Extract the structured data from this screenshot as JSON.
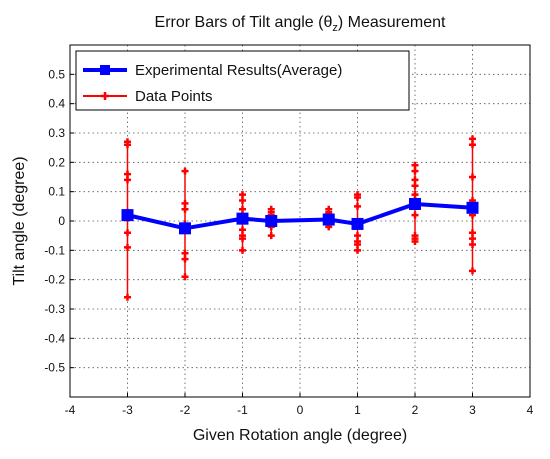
{
  "chart_data": {
    "type": "line",
    "title": "Error Bars of Tilt angle (θz) Measurement",
    "title_parts": {
      "before": "Error Bars of Tilt angle (",
      "theta": "θ",
      "sub": "z",
      "after": ") Measurement"
    },
    "xlabel": "Given Rotation angle (degree)",
    "ylabel": "Tilt angle (degree)",
    "xlim": [
      -4,
      4
    ],
    "ylim": [
      -0.6,
      0.6
    ],
    "xticks": [
      -4,
      -3,
      -2,
      -1,
      0,
      1,
      2,
      3,
      4
    ],
    "xtick_labels": [
      "-4",
      "-3",
      "-2",
      "-1",
      "0",
      "1",
      "2",
      "3",
      "4"
    ],
    "yticks": [
      -0.5,
      -0.4,
      -0.3,
      -0.2,
      -0.1,
      0,
      0.1,
      0.2,
      0.3,
      0.4,
      0.5
    ],
    "ytick_labels": [
      "-0.5",
      "-0.4",
      "-0.3",
      "-0.2",
      "-0.1",
      "0",
      "0.1",
      "0.2",
      "0.3",
      "0.4",
      "0.5"
    ],
    "grid": true,
    "legend_position": "top-left",
    "series": [
      {
        "name": "Experimental Results(Average)",
        "color": "#0000ff",
        "marker": "square",
        "x": [
          -3,
          -2,
          -1,
          -0.5,
          0.5,
          1,
          2,
          3
        ],
        "y": [
          0.02,
          -0.025,
          0.008,
          0.0,
          0.005,
          -0.01,
          0.058,
          0.045
        ]
      },
      {
        "name": "Data Points",
        "color": "#ff0000",
        "marker": "plus",
        "points": [
          [
            -3,
            0.27
          ],
          [
            -3,
            0.26
          ],
          [
            -3,
            0.16
          ],
          [
            -3,
            0.14
          ],
          [
            -3,
            0.03
          ],
          [
            -3,
            0.01
          ],
          [
            -3,
            -0.04
          ],
          [
            -3,
            -0.09
          ],
          [
            -3,
            -0.26
          ],
          [
            -2,
            0.17
          ],
          [
            -2,
            0.06
          ],
          [
            -2,
            0.04
          ],
          [
            -2,
            -0.01
          ],
          [
            -2,
            -0.02
          ],
          [
            -2,
            -0.03
          ],
          [
            -2,
            -0.11
          ],
          [
            -2,
            -0.13
          ],
          [
            -2,
            -0.19
          ],
          [
            -1,
            0.09
          ],
          [
            -1,
            0.07
          ],
          [
            -1,
            0.04
          ],
          [
            -1,
            0.02
          ],
          [
            -1,
            0.01
          ],
          [
            -1,
            -0.03
          ],
          [
            -1,
            -0.05
          ],
          [
            -1,
            -0.06
          ],
          [
            -1,
            -0.1
          ],
          [
            -0.5,
            0.04
          ],
          [
            -0.5,
            0.03
          ],
          [
            -0.5,
            0.02
          ],
          [
            -0.5,
            0.01
          ],
          [
            -0.5,
            -0.01
          ],
          [
            -0.5,
            -0.02
          ],
          [
            -0.5,
            -0.05
          ],
          [
            0.5,
            0.04
          ],
          [
            0.5,
            0.03
          ],
          [
            0.5,
            0.02
          ],
          [
            0.5,
            0.01
          ],
          [
            0.5,
            -0.01
          ],
          [
            0.5,
            -0.02
          ],
          [
            1,
            0.09
          ],
          [
            1,
            0.08
          ],
          [
            1,
            0.05
          ],
          [
            1,
            -0.01
          ],
          [
            1,
            -0.05
          ],
          [
            1,
            -0.07
          ],
          [
            1,
            -0.08
          ],
          [
            1,
            -0.1
          ],
          [
            2,
            0.19
          ],
          [
            2,
            0.17
          ],
          [
            2,
            0.14
          ],
          [
            2,
            0.12
          ],
          [
            2,
            0.09
          ],
          [
            2,
            0.07
          ],
          [
            2,
            0.02
          ],
          [
            2,
            -0.05
          ],
          [
            2,
            -0.06
          ],
          [
            2,
            -0.07
          ],
          [
            3,
            0.28
          ],
          [
            3,
            0.26
          ],
          [
            3,
            0.15
          ],
          [
            3,
            0.07
          ],
          [
            3,
            0.05
          ],
          [
            3,
            0.02
          ],
          [
            3,
            -0.04
          ],
          [
            3,
            -0.06
          ],
          [
            3,
            -0.08
          ],
          [
            3,
            -0.17
          ]
        ]
      }
    ]
  }
}
